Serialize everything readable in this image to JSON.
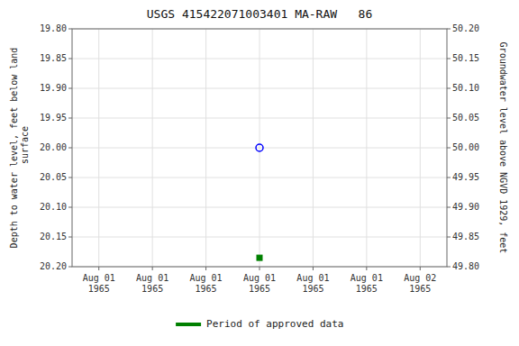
{
  "chart_data": {
    "type": "scatter",
    "title": "USGS 415422071003401 MA-RAW   86",
    "y_label": "Depth to water level, feet below land\n surface",
    "y2_label": "Groundwater level above NGVD 1929, feet",
    "categories": [
      "Aug 01\n1965",
      "Aug 01\n1965",
      "Aug 01\n1965",
      "Aug 01\n1965",
      "Aug 01\n1965",
      "Aug 01\n1965",
      "Aug 02\n1965"
    ],
    "series": [
      {
        "color": "blue",
        "marker": "circle",
        "values": [
          null,
          null,
          null,
          20,
          null,
          null,
          null
        ]
      },
      {
        "name": "Period of approved data",
        "color": "#008000",
        "marker": "square",
        "values": [
          null,
          null,
          null,
          20.185,
          null,
          null,
          null
        ]
      }
    ],
    "ylim": [
      20.2,
      19.8
    ],
    "yticks": [
      {
        "value": 19.8,
        "label": "19.80"
      },
      {
        "value": 19.85,
        "label": "19.85"
      },
      {
        "value": 19.9,
        "label": "19.90"
      },
      {
        "value": 19.95,
        "label": "19.95"
      },
      {
        "value": 20,
        "label": "20.00"
      },
      {
        "value": 20.05,
        "label": "20.05"
      },
      {
        "value": 20.1,
        "label": "20.10"
      },
      {
        "value": 20.15,
        "label": "20.15"
      },
      {
        "value": 20.2,
        "label": "20.20"
      }
    ],
    "y2lim": [
      49.8,
      50.2
    ],
    "y2ticks": [
      {
        "value": 50.2,
        "label": "50.20"
      },
      {
        "value": 50.15,
        "label": "50.15"
      },
      {
        "value": 50.1,
        "label": "50.10"
      },
      {
        "value": 50.05,
        "label": "50.05"
      },
      {
        "value": 50,
        "label": "50.00"
      },
      {
        "value": 49.95,
        "label": "49.95"
      },
      {
        "value": 49.9,
        "label": "49.90"
      },
      {
        "value": 49.85,
        "label": "49.85"
      },
      {
        "value": 49.8,
        "label": "49.80"
      }
    ],
    "grid": true
  }
}
